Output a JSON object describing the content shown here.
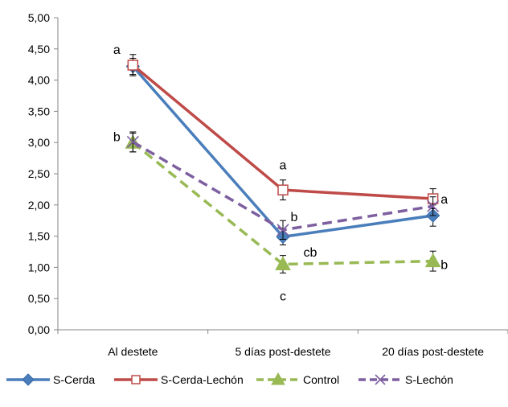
{
  "chart_data": {
    "type": "line",
    "categories": [
      "Al destete",
      "5 días post-destete",
      "20 días post-destete"
    ],
    "y_tick_labels": [
      "0,00",
      "0,50",
      "1,00",
      "1,50",
      "2,00",
      "2,50",
      "3,00",
      "3,50",
      "4,00",
      "4,50",
      "5,00"
    ],
    "ylim": [
      0,
      5
    ],
    "y_step": 0.5,
    "grid": false,
    "legend_position": "bottom",
    "series": [
      {
        "name": "S-Cerda",
        "values": [
          4.22,
          1.49,
          1.83
        ],
        "error": [
          0.13,
          0.13,
          0.17
        ],
        "color": "#4a7ebb",
        "dash": "solid",
        "marker": "diamond"
      },
      {
        "name": "S-Cerda-Lechón",
        "values": [
          4.24,
          2.24,
          2.1
        ],
        "error": [
          0.17,
          0.16,
          0.16
        ],
        "color": "#be4b48",
        "dash": "solid",
        "marker": "square-open"
      },
      {
        "name": "Control",
        "values": [
          3.0,
          1.05,
          1.1
        ],
        "error": [
          0.15,
          0.14,
          0.16
        ],
        "color": "#98b954",
        "dash": "dashed",
        "marker": "triangle"
      },
      {
        "name": "S-Lechón",
        "values": [
          3.01,
          1.6,
          1.98
        ],
        "error": [
          0.16,
          0.15,
          0.15
        ],
        "color": "#7d5fa0",
        "dash": "dashed",
        "marker": "x"
      }
    ],
    "annotations": [
      {
        "text": "a",
        "category": 0,
        "y": 4.5,
        "offset": "left"
      },
      {
        "text": "b",
        "category": 0,
        "y": 3.1,
        "offset": "left"
      },
      {
        "text": "a",
        "category": 1,
        "y": 2.65,
        "offset": "center"
      },
      {
        "text": "b",
        "category": 1,
        "y": 1.82,
        "offset": "right"
      },
      {
        "text": "cb",
        "category": 1,
        "y": 1.25,
        "offset": "right-far"
      },
      {
        "text": "c",
        "category": 1,
        "y": 0.55,
        "offset": "center"
      },
      {
        "text": "a",
        "category": 2,
        "y": 2.1,
        "offset": "right"
      },
      {
        "text": "b",
        "category": 2,
        "y": 1.05,
        "offset": "right"
      }
    ]
  }
}
